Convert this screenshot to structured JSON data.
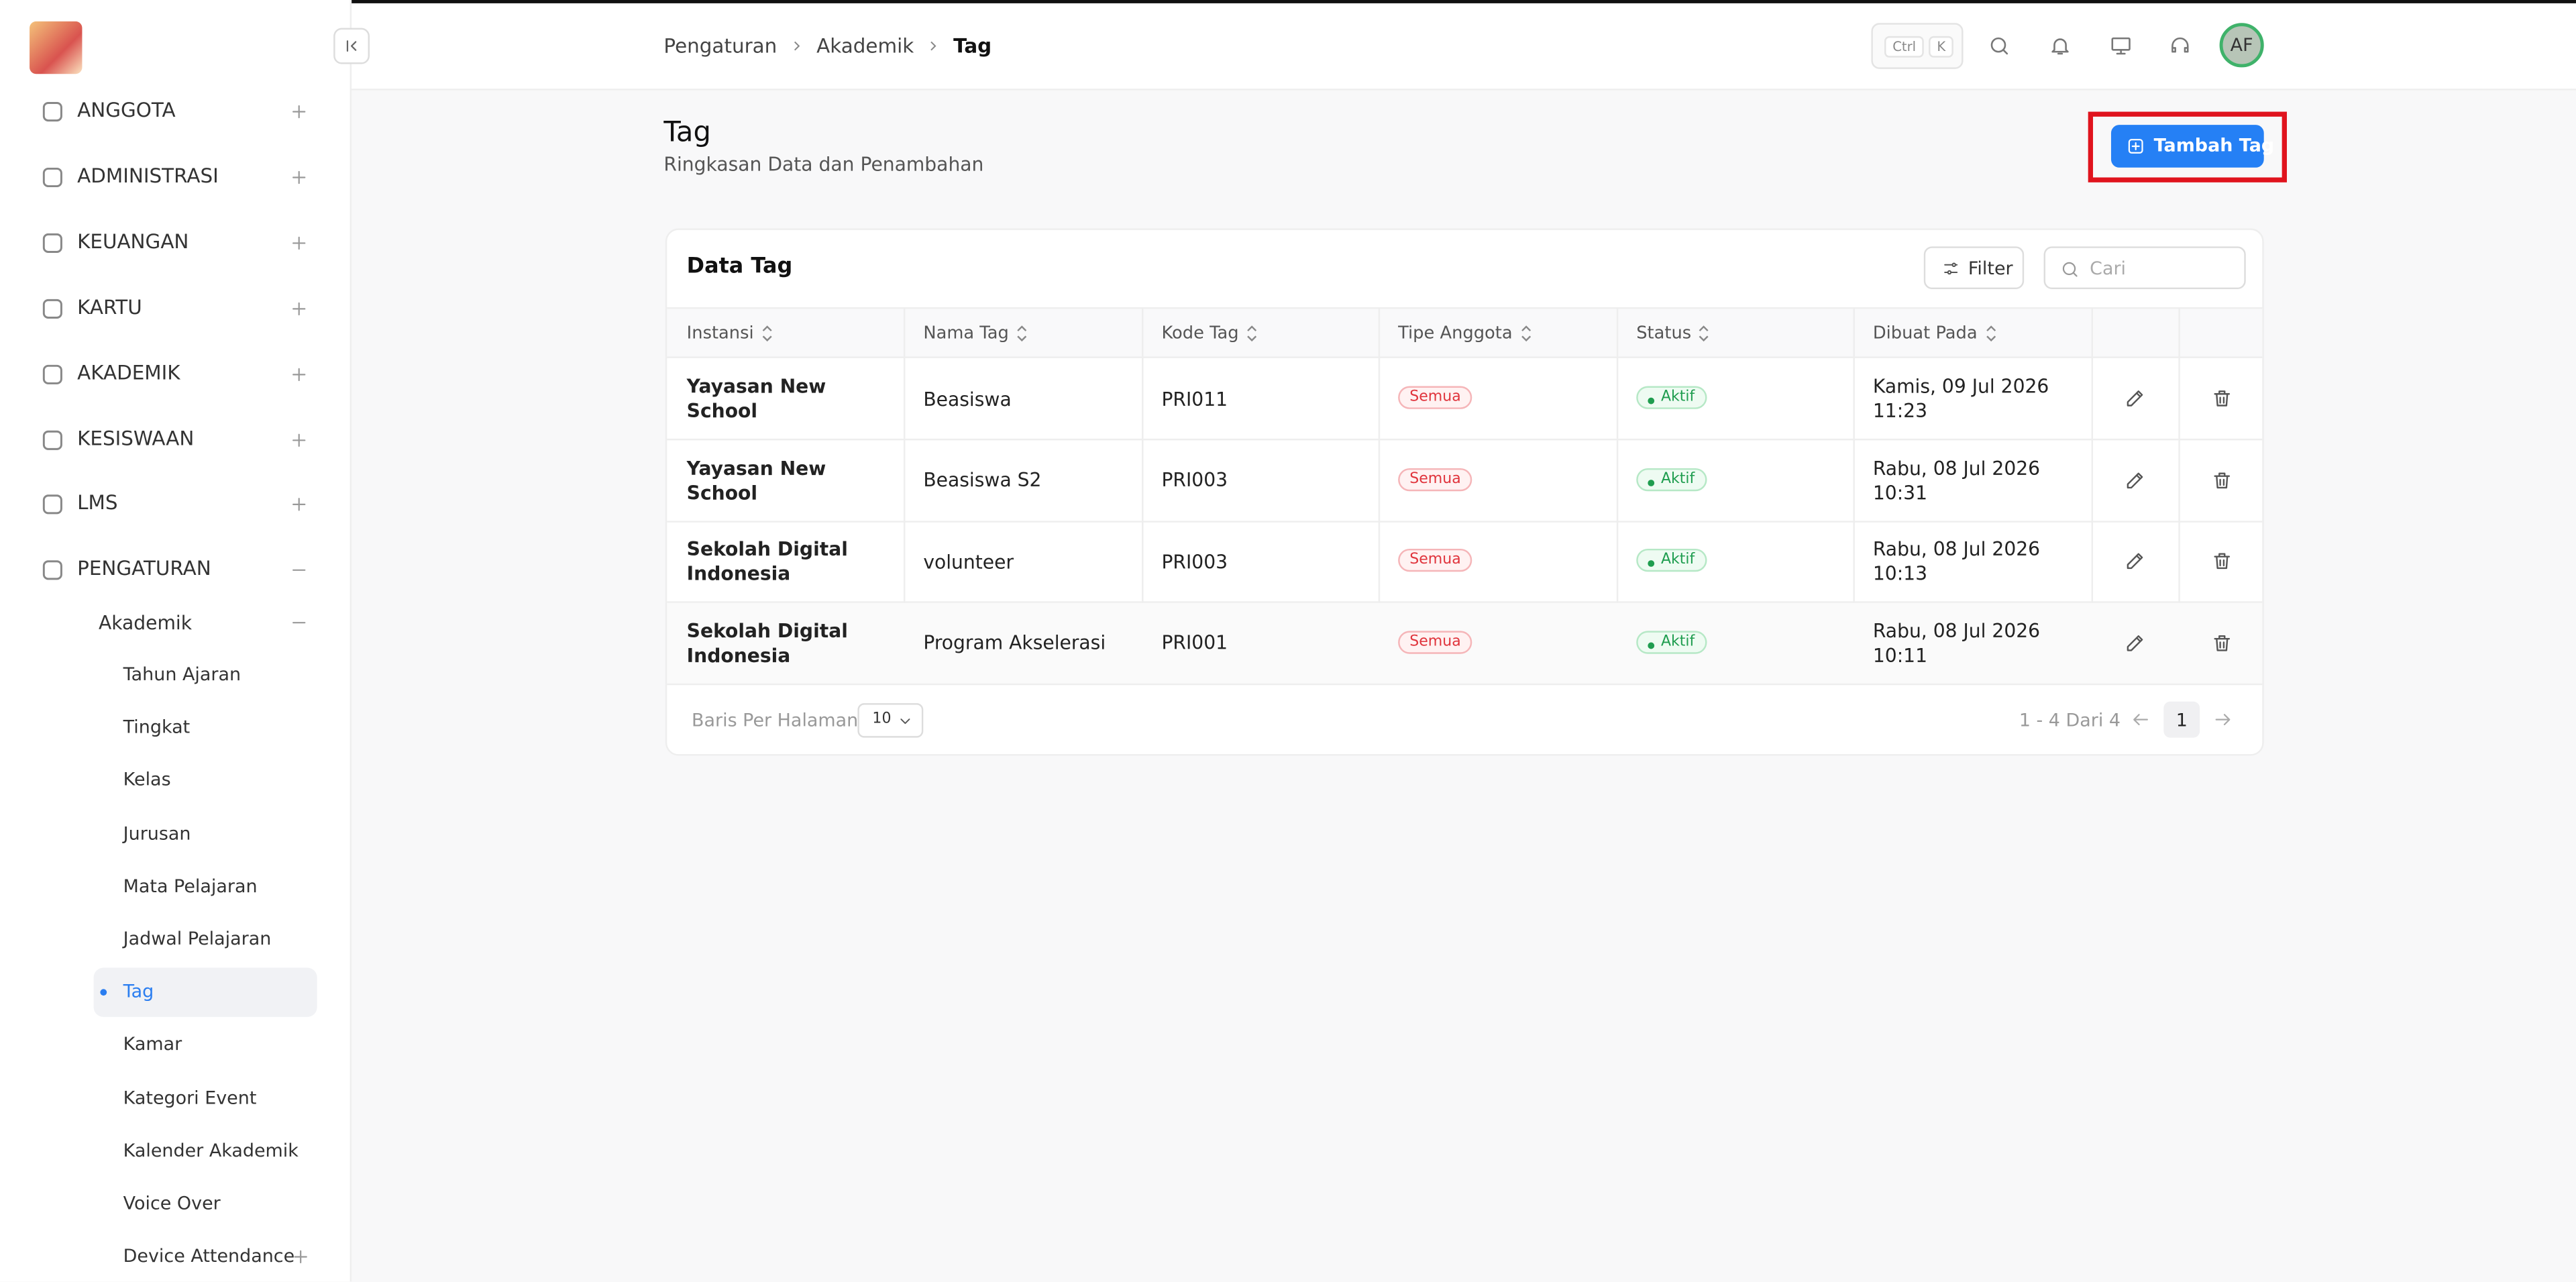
{
  "breadcrumb": [
    "Pengaturan",
    "Akademik",
    "Tag"
  ],
  "header": {
    "shortcut": [
      "Ctrl",
      "K"
    ],
    "avatar": "AF"
  },
  "sidebar": {
    "menu": [
      "ANGGOTA",
      "ADMINISTRASI",
      "KEUANGAN",
      "KARTU",
      "AKADEMIK",
      "KESISWAAN",
      "LMS",
      "PENGATURAN"
    ],
    "submenu": "Akademik",
    "items": [
      "Tahun Ajaran",
      "Tingkat",
      "Kelas",
      "Jurusan",
      "Mata Pelajaran",
      "Jadwal Pelajaran",
      "Tag",
      "Kamar",
      "Kategori Event",
      "Kalender Akademik",
      "Voice Over",
      "Device Attendance"
    ]
  },
  "page": {
    "title": "Tag",
    "subtitle": "Ringkasan Data dan Penambahan",
    "add_button": "Tambah Tag"
  },
  "table": {
    "title": "Data Tag",
    "filter": "Filter",
    "search_placeholder": "Cari",
    "columns": [
      "Instansi",
      "Nama Tag",
      "Kode Tag",
      "Tipe Anggota",
      "Status",
      "Dibuat Pada"
    ],
    "rows": [
      [
        "Yayasan New School",
        "Beasiswa",
        "PRI011",
        "Semua",
        "Aktif",
        "Kamis, 09 Jul 2026 11:23"
      ],
      [
        "Yayasan New School",
        "Beasiswa S2",
        "PRI003",
        "Semua",
        "Aktif",
        "Rabu, 08 Jul 2026 10:31"
      ],
      [
        "Sekolah Digital Indonesia",
        "volunteer",
        "PRI003",
        "Semua",
        "Aktif",
        "Rabu, 08 Jul 2026 10:13"
      ],
      [
        "Sekolah Digital Indonesia",
        "Program Akselerasi",
        "PRI001",
        "Semua",
        "Aktif",
        "Rabu, 08 Jul 2026 10:11"
      ]
    ]
  },
  "pagination": {
    "rows_label": "Baris Per Halaman",
    "rows_per_page": "10",
    "range": "1 - 4 Dari 4",
    "page": "1"
  }
}
